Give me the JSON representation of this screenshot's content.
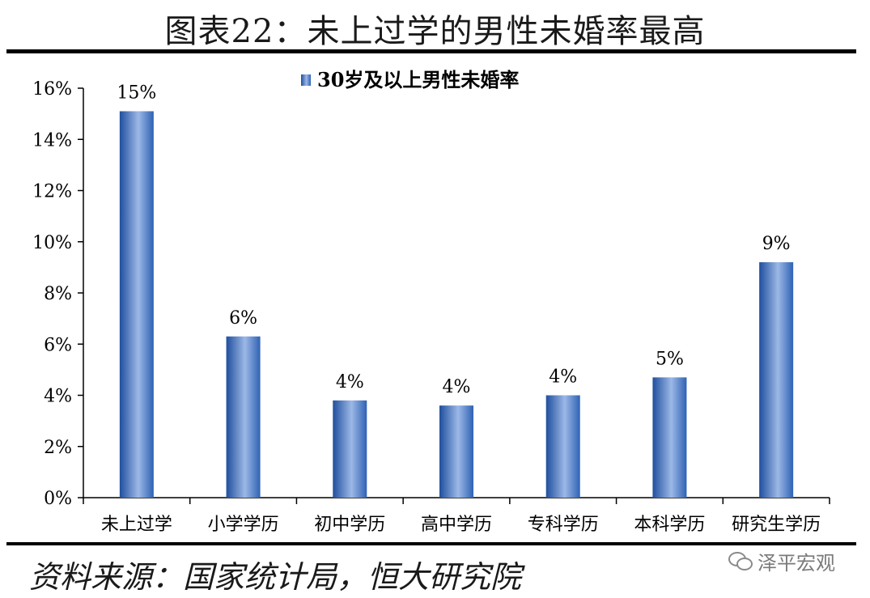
{
  "header": {
    "title": "图表22：未上过学的男性未婚率最高"
  },
  "footer": {
    "source": "资料来源：国家统计局，恒大研究院",
    "watermark": "泽平宏观"
  },
  "chart_data": {
    "type": "bar",
    "title": "",
    "xlabel": "",
    "ylabel": "",
    "categories": [
      "未上过学",
      "小学学历",
      "初中学历",
      "高中学历",
      "专科学历",
      "本科学历",
      "研究生学历"
    ],
    "series": [
      {
        "name": "30岁及以上男性未婚率",
        "values": [
          15.1,
          6.3,
          3.8,
          3.6,
          4.0,
          4.7,
          9.2
        ],
        "labels": [
          "15%",
          "6%",
          "4%",
          "4%",
          "4%",
          "5%",
          "9%"
        ]
      }
    ],
    "ylim": [
      0,
      16
    ],
    "yticks": [
      0,
      2,
      4,
      6,
      8,
      10,
      12,
      14,
      16
    ],
    "ytick_labels": [
      "0%",
      "2%",
      "4%",
      "6%",
      "8%",
      "10%",
      "12%",
      "14%",
      "16%"
    ],
    "grid": false,
    "legend_position": "top-center",
    "colors": {
      "bar_dark": "#1f4f9e",
      "bar_light": "#9cb8e6",
      "axis": "#000000"
    }
  }
}
